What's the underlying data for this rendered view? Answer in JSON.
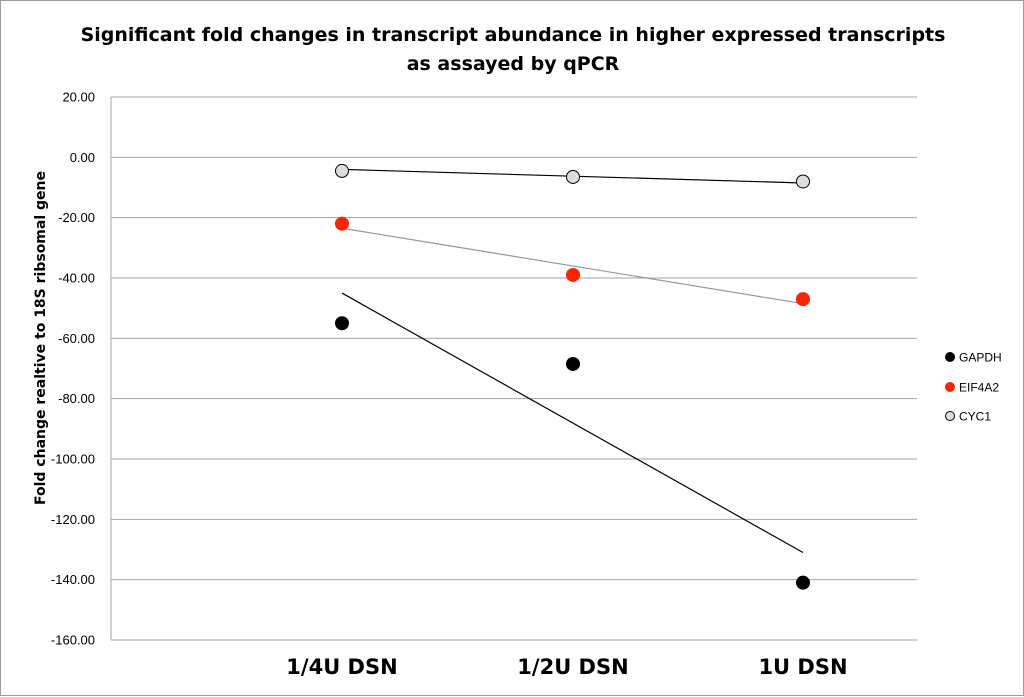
{
  "chart_data": {
    "type": "scatter",
    "title_line1": "Significant fold changes in transcript abundance in higher expressed transcripts",
    "title_line2": "as assayed by qPCR",
    "xlabel": "",
    "ylabel": "Fold change realtive to 18S ribsomal gene",
    "categories": [
      "1/4U DSN",
      "1/2U DSN",
      "1U DSN"
    ],
    "ylim": [
      -160,
      20
    ],
    "ytick_step": 20,
    "ytick_labels": [
      "20.00",
      "0.00",
      "-20.00",
      "-40.00",
      "-60.00",
      "-80.00",
      "-100.00",
      "-120.00",
      "-140.00",
      "-160.00"
    ],
    "grid": true,
    "legend_position": "right",
    "series": [
      {
        "name": "GAPDH",
        "values": [
          -55,
          -68.5,
          -141
        ],
        "marker_fill": "#000000",
        "marker_stroke": "#000000",
        "trendline": [
          -45,
          -131
        ],
        "trendline_color": "#000000"
      },
      {
        "name": "EIF4A2",
        "values": [
          -22,
          -39,
          -47
        ],
        "marker_fill": "#ff2200",
        "marker_stroke": "#ff2200",
        "trendline": [
          -23.5,
          -48.5
        ],
        "trendline_color": "#999999"
      },
      {
        "name": "CYC1",
        "values": [
          -4.5,
          -6.5,
          -8
        ],
        "marker_fill": "#dddddd",
        "marker_stroke": "#000000",
        "trendline": [
          -4,
          -8.5
        ],
        "trendline_color": "#000000"
      }
    ]
  }
}
